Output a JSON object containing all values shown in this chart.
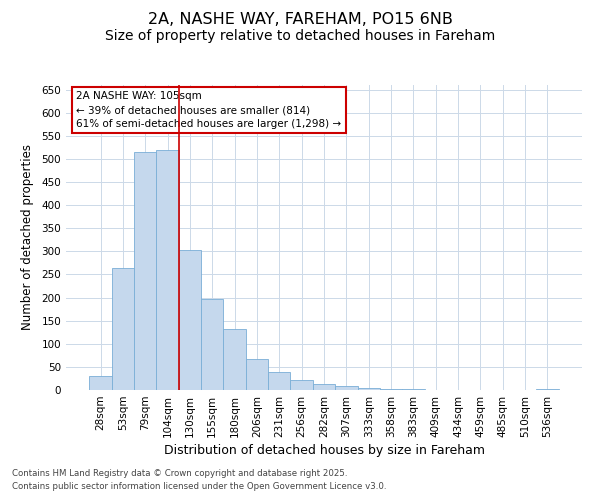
{
  "title_line1": "2A, NASHE WAY, FAREHAM, PO15 6NB",
  "title_line2": "Size of property relative to detached houses in Fareham",
  "xlabel": "Distribution of detached houses by size in Fareham",
  "ylabel": "Number of detached properties",
  "categories": [
    "28sqm",
    "53sqm",
    "79sqm",
    "104sqm",
    "130sqm",
    "155sqm",
    "180sqm",
    "206sqm",
    "231sqm",
    "256sqm",
    "282sqm",
    "307sqm",
    "333sqm",
    "358sqm",
    "383sqm",
    "409sqm",
    "434sqm",
    "459sqm",
    "485sqm",
    "510sqm",
    "536sqm"
  ],
  "values": [
    30,
    265,
    515,
    520,
    303,
    198,
    133,
    67,
    38,
    21,
    13,
    8,
    4,
    3,
    2,
    1,
    1,
    0,
    0,
    0,
    2
  ],
  "bar_color": "#c5d8ed",
  "bar_edge_color": "#7aaed6",
  "vline_x_idx": 3,
  "vline_color": "#cc0000",
  "annotation_text": "2A NASHE WAY: 105sqm\n← 39% of detached houses are smaller (814)\n61% of semi-detached houses are larger (1,298) →",
  "annotation_box_color": "#ffffff",
  "annotation_box_edge_color": "#cc0000",
  "ylim": [
    0,
    660
  ],
  "yticks": [
    0,
    50,
    100,
    150,
    200,
    250,
    300,
    350,
    400,
    450,
    500,
    550,
    600,
    650
  ],
  "footer_line1": "Contains HM Land Registry data © Crown copyright and database right 2025.",
  "footer_line2": "Contains public sector information licensed under the Open Government Licence v3.0.",
  "background_color": "#ffffff",
  "grid_color": "#ccd9e8",
  "title_fontsize": 11.5,
  "subtitle_fontsize": 10,
  "tick_fontsize": 7.5,
  "ylabel_fontsize": 8.5,
  "xlabel_fontsize": 9
}
